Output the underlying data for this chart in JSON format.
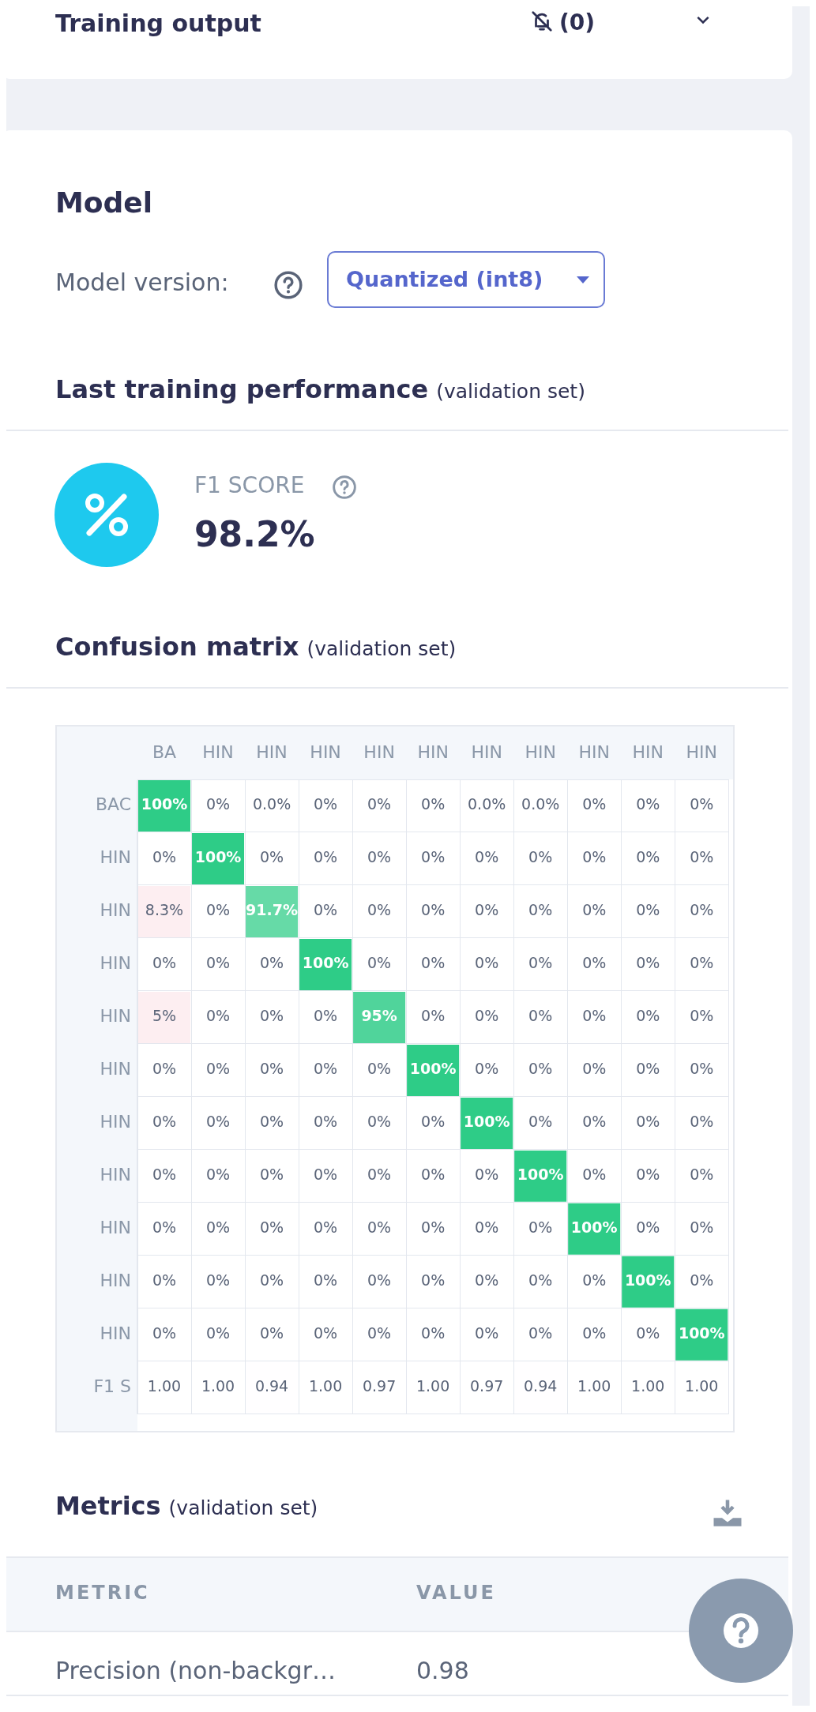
{
  "chart_data": {
    "type": "heatmap",
    "title": "Confusion matrix",
    "subtitle": "(validation set)",
    "categories": [
      "BA",
      "HIN",
      "HIN",
      "HIN",
      "HIN",
      "HIN",
      "HIN",
      "HIN",
      "HIN",
      "HIN",
      "HIN"
    ],
    "y_categories": [
      "BAC",
      "HIN",
      "HIN",
      "HIN",
      "HIN",
      "HIN",
      "HIN",
      "HIN",
      "HIN",
      "HIN",
      "HIN",
      "F1 S"
    ],
    "cells": [
      [
        100,
        0,
        0.0,
        0,
        0,
        0,
        0.0,
        0.0,
        0,
        0,
        0
      ],
      [
        0,
        100,
        0,
        0,
        0,
        0,
        0,
        0,
        0,
        0,
        0
      ],
      [
        8.3,
        0,
        91.7,
        0,
        0,
        0,
        0,
        0,
        0,
        0,
        0
      ],
      [
        0,
        0,
        0,
        100,
        0,
        0,
        0,
        0,
        0,
        0,
        0
      ],
      [
        5,
        0,
        0,
        0,
        95,
        0,
        0,
        0,
        0,
        0,
        0
      ],
      [
        0,
        0,
        0,
        0,
        0,
        100,
        0,
        0,
        0,
        0,
        0
      ],
      [
        0,
        0,
        0,
        0,
        0,
        0,
        100,
        0,
        0,
        0,
        0
      ],
      [
        0,
        0,
        0,
        0,
        0,
        0,
        0,
        100,
        0,
        0,
        0
      ],
      [
        0,
        0,
        0,
        0,
        0,
        0,
        0,
        0,
        100,
        0,
        0
      ],
      [
        0,
        0,
        0,
        0,
        0,
        0,
        0,
        0,
        0,
        100,
        0
      ],
      [
        0,
        0,
        0,
        0,
        0,
        0,
        0,
        0,
        0,
        0,
        100
      ],
      [
        1.0,
        1.0,
        0.94,
        1.0,
        0.97,
        1.0,
        0.97,
        0.94,
        1.0,
        1.0,
        1.0
      ]
    ],
    "cell_labels": [
      [
        "100%",
        "0%",
        "0.0%",
        "0%",
        "0%",
        "0%",
        "0.0%",
        "0.0%",
        "0%",
        "0%",
        "0%"
      ],
      [
        "0%",
        "100%",
        "0%",
        "0%",
        "0%",
        "0%",
        "0%",
        "0%",
        "0%",
        "0%",
        "0%"
      ],
      [
        "8.3%",
        "0%",
        "91.7%",
        "0%",
        "0%",
        "0%",
        "0%",
        "0%",
        "0%",
        "0%",
        "0%"
      ],
      [
        "0%",
        "0%",
        "0%",
        "100%",
        "0%",
        "0%",
        "0%",
        "0%",
        "0%",
        "0%",
        "0%"
      ],
      [
        "5%",
        "0%",
        "0%",
        "0%",
        "95%",
        "0%",
        "0%",
        "0%",
        "0%",
        "0%",
        "0%"
      ],
      [
        "0%",
        "0%",
        "0%",
        "0%",
        "0%",
        "100%",
        "0%",
        "0%",
        "0%",
        "0%",
        "0%"
      ],
      [
        "0%",
        "0%",
        "0%",
        "0%",
        "0%",
        "0%",
        "100%",
        "0%",
        "0%",
        "0%",
        "0%"
      ],
      [
        "0%",
        "0%",
        "0%",
        "0%",
        "0%",
        "0%",
        "0%",
        "100%",
        "0%",
        "0%",
        "0%"
      ],
      [
        "0%",
        "0%",
        "0%",
        "0%",
        "0%",
        "0%",
        "0%",
        "0%",
        "100%",
        "0%",
        "0%"
      ],
      [
        "0%",
        "0%",
        "0%",
        "0%",
        "0%",
        "0%",
        "0%",
        "0%",
        "0%",
        "100%",
        "0%"
      ],
      [
        "0%",
        "0%",
        "0%",
        "0%",
        "0%",
        "0%",
        "0%",
        "0%",
        "0%",
        "0%",
        "100%"
      ],
      [
        "1.00",
        "1.00",
        "0.94",
        "1.00",
        "0.97",
        "1.00",
        "0.97",
        "0.94",
        "1.00",
        "1.00",
        "1.00"
      ]
    ],
    "color": "#2ecc87",
    "annotations": [
      "Training output",
      "(0)",
      "Model",
      "Model version:",
      "Quantized (int8)",
      "Last training performance",
      "(validation set)",
      "F1 SCORE",
      "98.2%",
      "Metrics",
      "(validation set)",
      "METRIC",
      "VALUE",
      "Precision (non-backgr…",
      "0.98"
    ]
  }
}
